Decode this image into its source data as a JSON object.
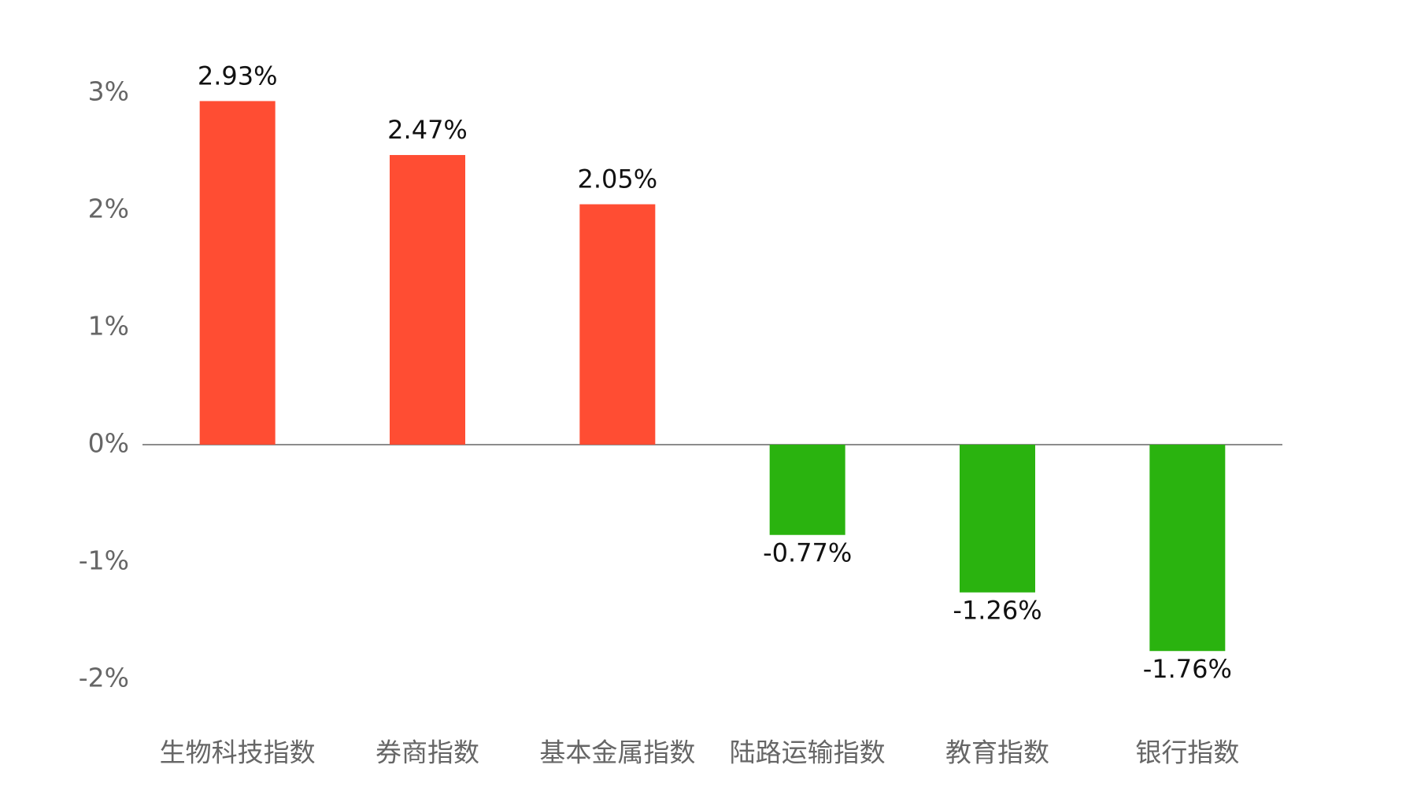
{
  "chart_data": {
    "type": "bar",
    "categories": [
      "生物科技指数",
      "券商指数",
      "基本金属指数",
      "陆路运输指数",
      "教育指数",
      "银行指数"
    ],
    "values": [
      2.93,
      2.47,
      2.05,
      -0.77,
      -1.26,
      -1.76
    ],
    "value_labels": [
      "2.93%",
      "2.47%",
      "2.05%",
      "-0.77%",
      "-1.26%",
      "-1.76%"
    ],
    "colors": [
      "#ff4d33",
      "#ff4d33",
      "#ff4d33",
      "#2ab30f",
      "#2ab30f",
      "#2ab30f"
    ],
    "ylim": [
      -2,
      3
    ],
    "yticks": [
      {
        "value": 3,
        "label": "3%"
      },
      {
        "value": 2,
        "label": "2%"
      },
      {
        "value": 1,
        "label": "1%"
      },
      {
        "value": 0,
        "label": "0%"
      },
      {
        "value": -1,
        "label": "-1%"
      },
      {
        "value": -2,
        "label": "-2%"
      }
    ],
    "grid": false
  }
}
